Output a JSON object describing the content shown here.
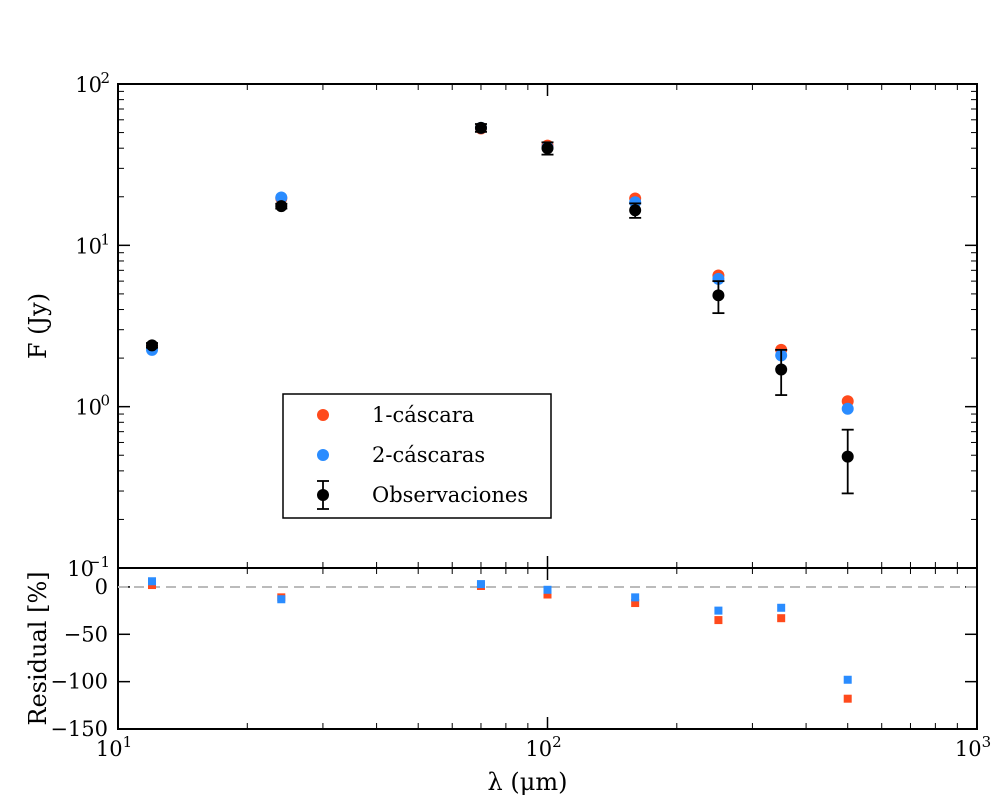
{
  "chart_data": {
    "type": "scatter",
    "x_scale": "log",
    "xlim": [
      10,
      1000
    ],
    "xlabel": "λ (μm)",
    "x_tick_labels": [
      "10^1",
      "10^2",
      "10^3"
    ],
    "top_panel": {
      "ylabel": "F (Jy)",
      "y_scale": "log",
      "ylim": [
        0.1,
        100
      ],
      "y_tick_labels": [
        "10^2",
        "10^1",
        "10^0",
        "10^−1"
      ],
      "series": [
        {
          "name": "1-cáscara",
          "color": "#ff4a1c",
          "x": [
            12,
            24,
            70,
            100,
            160,
            250,
            350,
            500
          ],
          "y": [
            2.35,
            19.5,
            53,
            41.5,
            19.5,
            6.5,
            2.25,
            1.08
          ]
        },
        {
          "name": "2-cáscaras",
          "color": "#2a8cff",
          "x": [
            12,
            24,
            70,
            100,
            160,
            250,
            350,
            500
          ],
          "y": [
            2.25,
            19.8,
            53.5,
            40.5,
            18.5,
            6.2,
            2.08,
            0.97
          ]
        },
        {
          "name": "Observaciones",
          "color": "#000000",
          "x": [
            12,
            24,
            70,
            100,
            160,
            250,
            350,
            500
          ],
          "y": [
            2.4,
            17.5,
            53.5,
            40,
            16.5,
            4.9,
            1.7,
            0.49
          ],
          "y_err_low": [
            2.32,
            16.9,
            50.5,
            36.5,
            14.8,
            3.8,
            1.18,
            0.29
          ],
          "y_err_high": [
            2.48,
            18.1,
            56.5,
            43.5,
            18.2,
            6.0,
            2.25,
            0.72
          ]
        }
      ],
      "legend_position": "lower-left"
    },
    "bottom_panel": {
      "ylabel": "Residual [%]",
      "y_scale": "linear",
      "ylim": [
        -150,
        20
      ],
      "y_tick_labels": [
        "0",
        "−50",
        "−100",
        "−150"
      ],
      "reference_line": 0,
      "series": [
        {
          "name": "1-cáscara",
          "color": "#ff4a1c",
          "x": [
            12,
            24,
            70,
            100,
            160,
            250,
            350,
            500
          ],
          "y": [
            2,
            -11,
            1,
            -8,
            -17,
            -35,
            -33,
            -118
          ]
        },
        {
          "name": "2-cáscaras",
          "color": "#2a8cff",
          "x": [
            12,
            24,
            70,
            100,
            160,
            250,
            350,
            500
          ],
          "y": [
            6,
            -13,
            3,
            -3,
            -11,
            -25,
            -22,
            -98
          ]
        }
      ]
    }
  }
}
